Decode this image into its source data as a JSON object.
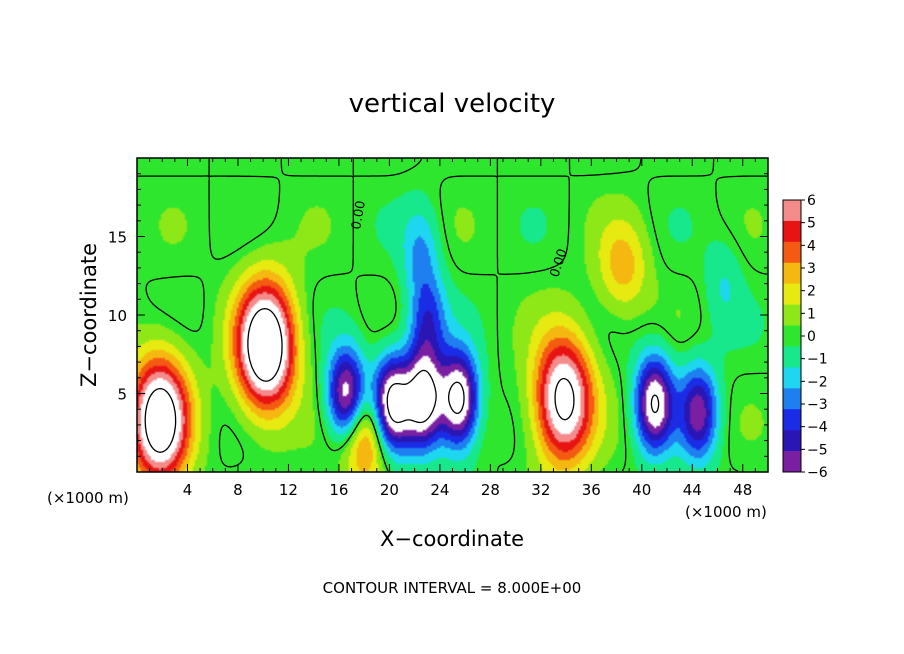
{
  "chart_data": {
    "type": "heatmap",
    "title": "vertical velocity",
    "xlabel": "X−coordinate",
    "ylabel": "Z−coordinate",
    "x_unit_left": "(×1000 m)",
    "x_unit_right": "(×1000 m)",
    "x_ticks": [
      4,
      8,
      12,
      16,
      20,
      24,
      28,
      32,
      36,
      40,
      44,
      48
    ],
    "y_ticks": [
      5,
      10,
      15
    ],
    "xlim": [
      0,
      50
    ],
    "ylim": [
      0,
      20
    ],
    "colorbar_ticks": [
      "6",
      "5",
      "4",
      "3",
      "2",
      "1",
      "0",
      "−1",
      "−2",
      "−3",
      "−4",
      "−5",
      "−6"
    ],
    "colorbar_range": [
      -6,
      6
    ],
    "colors": [
      "#7a1fa2",
      "#2a16b4",
      "#1a2ce6",
      "#1e7ff0",
      "#1fd6f0",
      "#17e88c",
      "#2ee62e",
      "#8ee818",
      "#e6ea10",
      "#f4b810",
      "#f45a12",
      "#e81414",
      "#f58c8c"
    ],
    "contour_labels": [
      "0.00",
      "0.00"
    ],
    "contour_interval_text": "CONTOUR INTERVAL = 8.000E+00",
    "features": [
      {
        "x": 1.8,
        "z": 3.3,
        "value": 10,
        "kind": "updraft"
      },
      {
        "x": 10.2,
        "z": 8.0,
        "value": 11,
        "kind": "updraft"
      },
      {
        "x": 33.8,
        "z": 4.6,
        "value": 9,
        "kind": "updraft"
      },
      {
        "x": 38.5,
        "z": 13.0,
        "value": 3,
        "kind": "updraft"
      },
      {
        "x": 18.0,
        "z": 2.2,
        "value": 5,
        "kind": "updraft"
      },
      {
        "x": 16.6,
        "z": 4.8,
        "value": -8,
        "kind": "downdraft"
      },
      {
        "x": 20.2,
        "z": 4.3,
        "value": -9,
        "kind": "downdraft"
      },
      {
        "x": 22.7,
        "z": 4.6,
        "value": -9,
        "kind": "downdraft"
      },
      {
        "x": 25.5,
        "z": 4.6,
        "value": -9,
        "kind": "downdraft"
      },
      {
        "x": 41.0,
        "z": 4.4,
        "value": -8,
        "kind": "downdraft"
      },
      {
        "x": 44.5,
        "z": 3.8,
        "value": -6,
        "kind": "downdraft"
      },
      {
        "x": 23.0,
        "z": 9.5,
        "value": -4,
        "kind": "downdraft"
      },
      {
        "x": 22.5,
        "z": 14.0,
        "value": -2.5,
        "kind": "downdraft"
      },
      {
        "x": 46.5,
        "z": 12.0,
        "value": -1.5,
        "kind": "downdraft"
      }
    ]
  }
}
